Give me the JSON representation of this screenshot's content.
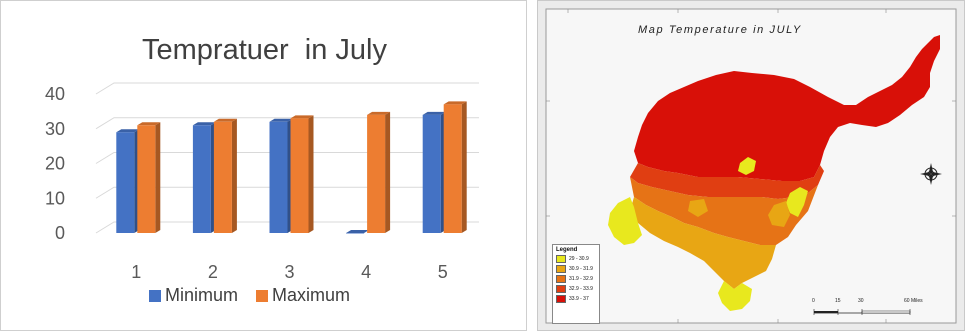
{
  "chart_data": [
    {
      "type": "bar",
      "title": "Tempratuer  in July",
      "categories": [
        "1",
        "2",
        "3",
        "4",
        "5"
      ],
      "series": [
        {
          "name": "Minimum",
          "values": [
            29,
            31,
            32,
            0,
            34
          ],
          "color": "#4472C4"
        },
        {
          "name": "Maximum",
          "values": [
            31,
            32,
            33,
            34,
            37
          ],
          "color": "#ED7D31"
        }
      ],
      "yticks": [
        "0",
        "10",
        "20",
        "30",
        "40"
      ],
      "ylim": [
        0,
        40
      ],
      "grid": true,
      "legend": "bottom"
    }
  ],
  "map": {
    "title": "Map Temperature in JULY",
    "legend_title": "Legend",
    "legend_items": [
      {
        "label": "29 - 30.9",
        "color": "#e8e81e"
      },
      {
        "label": "30.9 - 31.9",
        "color": "#e8a614"
      },
      {
        "label": "31.9 - 32.9",
        "color": "#e67316"
      },
      {
        "label": "32.9 - 33.9",
        "color": "#e03e12"
      },
      {
        "label": "33.9 - 37",
        "color": "#d81008"
      }
    ],
    "scale_labels": [
      "0",
      "15",
      "30",
      "60 Miles"
    ]
  }
}
